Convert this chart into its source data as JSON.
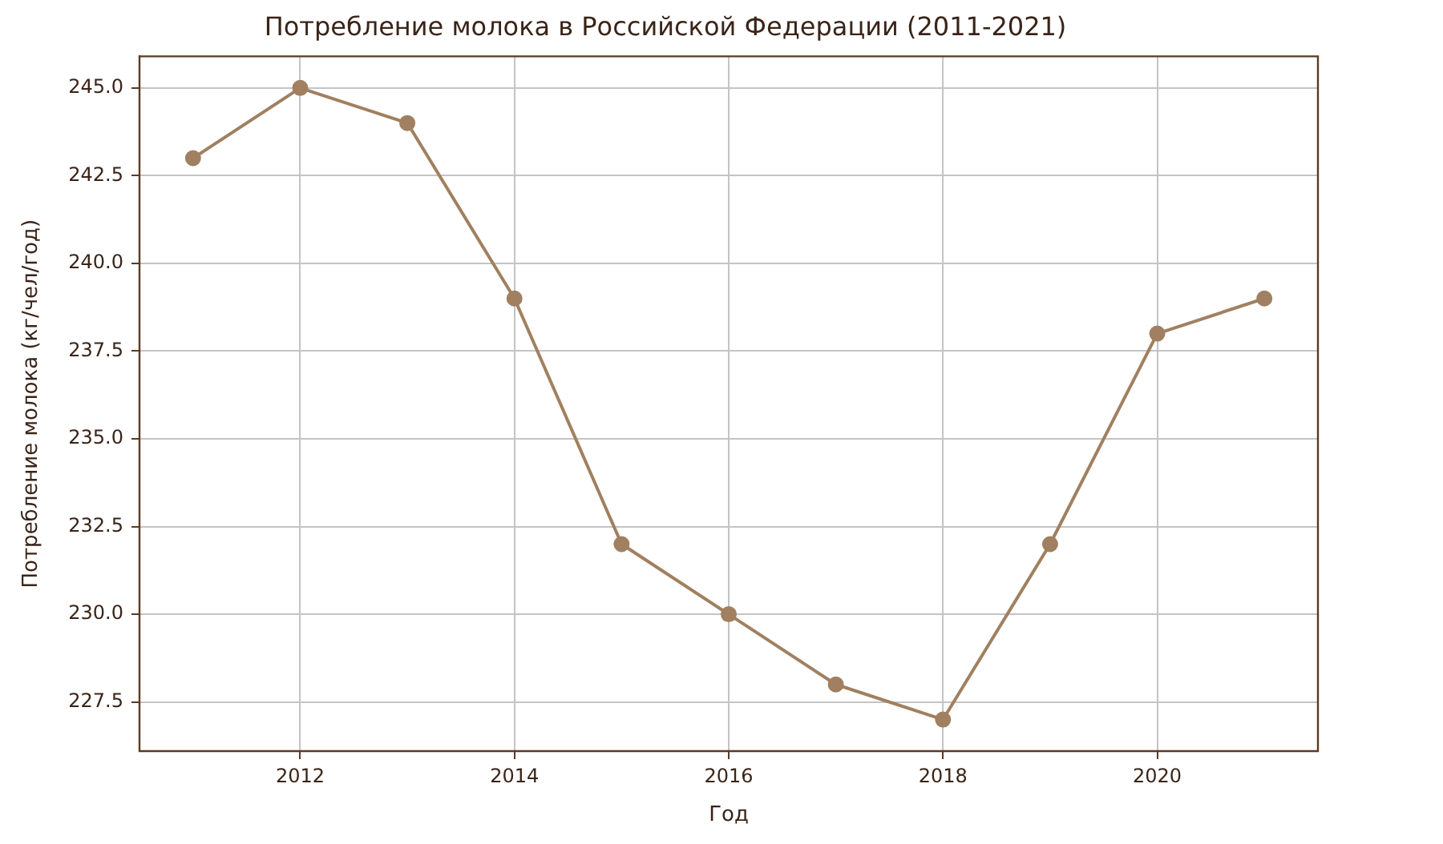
{
  "chart_data": {
    "type": "line",
    "title": "Потребление молока в Российской Федерации (2011-2021)",
    "xlabel": "Год",
    "ylabel": "Потребление молока (кг/чел/год)",
    "x": [
      2011,
      2012,
      2013,
      2014,
      2015,
      2016,
      2017,
      2018,
      2019,
      2020,
      2021
    ],
    "series": [
      {
        "color": "#a08060",
        "values": [
          243,
          245,
          244,
          239,
          232,
          230,
          228,
          227,
          232,
          238,
          239
        ]
      }
    ],
    "xlim": [
      2010.5,
      2021.5
    ],
    "xticks": [
      2012,
      2014,
      2016,
      2018,
      2020
    ],
    "ylim": [
      226.1,
      245.9
    ],
    "yticks": [
      227.5,
      {
        "value": 230,
        "label": "230.0"
      },
      232.5,
      {
        "value": 235,
        "label": "235.0"
      },
      237.5,
      {
        "value": 240,
        "label": "240.0"
      },
      242.5,
      {
        "value": 245,
        "label": "245.0"
      }
    ],
    "grid": true,
    "marker": "circle",
    "line_style": "solid"
  }
}
